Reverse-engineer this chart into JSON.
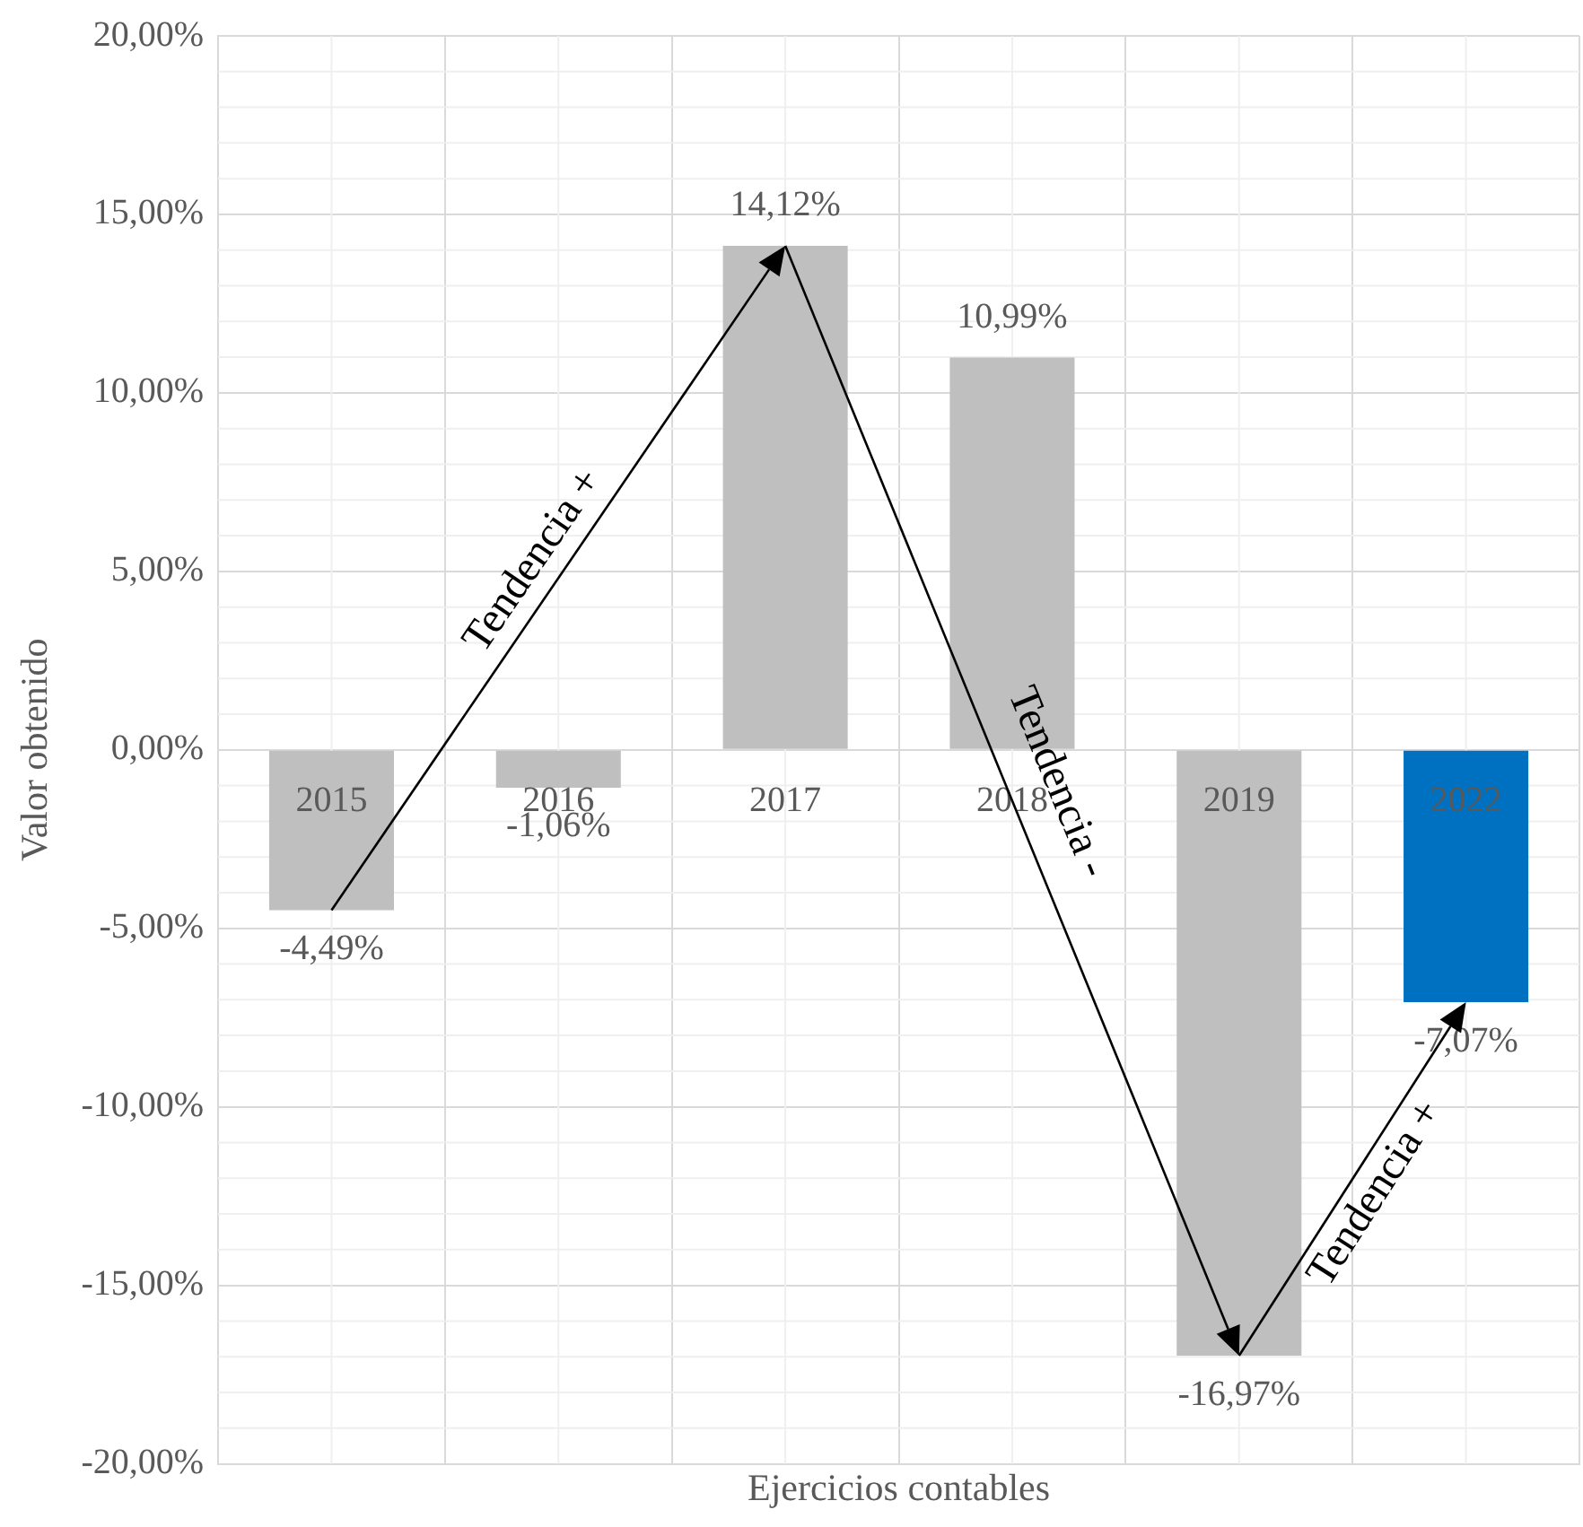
{
  "chart_data": {
    "type": "bar",
    "xlabel": "Ejercicios contables",
    "ylabel": "Valor obtenido",
    "categories": [
      "2015",
      "2016",
      "2017",
      "2018",
      "2019",
      "2022"
    ],
    "values": [
      -4.49,
      -1.06,
      14.12,
      10.99,
      -16.97,
      -7.07
    ],
    "colors": [
      "#bfbfbf",
      "#bfbfbf",
      "#bfbfbf",
      "#bfbfbf",
      "#bfbfbf",
      "#0070c0"
    ],
    "value_labels": [
      "-4,49%",
      "-1,06%",
      "14,12%",
      "10,99%",
      "-16,97%",
      "-7,07%"
    ],
    "ylim": [
      -20,
      20
    ],
    "yticks": [
      {
        "value": -20,
        "label": "-20,00%"
      },
      {
        "value": -15,
        "label": "-15,00%"
      },
      {
        "value": -10,
        "label": "-10,00%"
      },
      {
        "value": -5,
        "label": "-5,00%"
      },
      {
        "value": 0,
        "label": "0,00%"
      },
      {
        "value": 5,
        "label": "5,00%"
      },
      {
        "value": 10,
        "label": "10,00%"
      },
      {
        "value": 15,
        "label": "15,00%"
      },
      {
        "value": 20,
        "label": "20,00%"
      }
    ],
    "grid": true,
    "legend": false,
    "annotations": [
      "Tendencia +",
      "Tendencia -",
      "Tendencia +"
    ]
  }
}
